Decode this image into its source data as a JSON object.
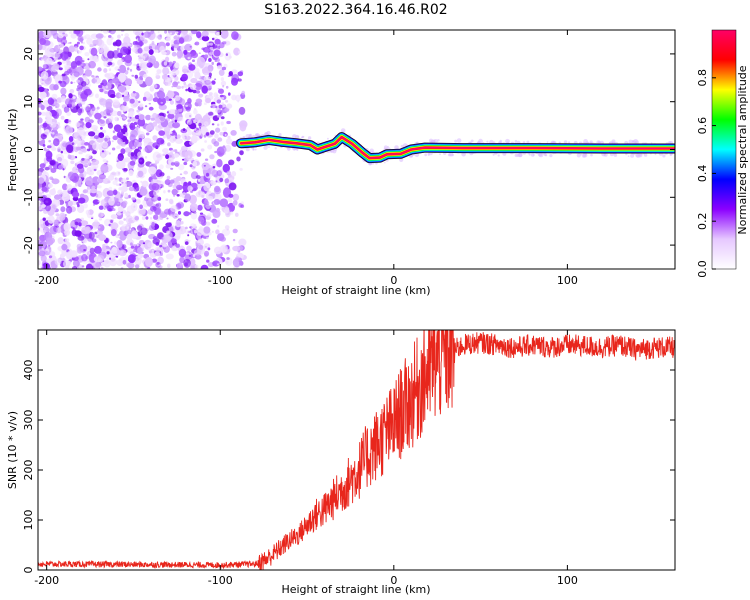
{
  "title": "S163.2022.364.16.46.R02",
  "chart_data": [
    {
      "type": "heatmap",
      "xlabel": "Height of straight line (km)",
      "ylabel": "Frequency (Hz)",
      "xlim": [
        -205,
        162
      ],
      "ylim": [
        -25,
        25
      ],
      "x_ticks": [
        -200,
        -100,
        0,
        100
      ],
      "y_ticks": [
        -20,
        -10,
        0,
        10,
        20
      ],
      "colorbar": {
        "label": "Normalized spectral amplitude",
        "range": [
          0,
          1
        ],
        "ticks": [
          0.0,
          0.2,
          0.4,
          0.6,
          0.8
        ],
        "tick_labels": [
          "0.0",
          "0.2",
          "0.4",
          "0.6",
          "0.8"
        ],
        "colormap": [
          "#ffffff",
          "#e6c8ff",
          "#8b00ff",
          "#0000ff",
          "#00ffff",
          "#00ff00",
          "#ffff00",
          "#ff0000",
          "#ff0066"
        ]
      },
      "noise_region_x": [
        -205,
        -86
      ],
      "signal_start_x": -88,
      "peak_track": {
        "x": [
          -88,
          -80,
          -72,
          -64,
          -56,
          -48,
          -44,
          -40,
          -34,
          -30,
          -24,
          -18,
          -14,
          -8,
          -4,
          4,
          10,
          18,
          40,
          80,
          120,
          162
        ],
        "y": [
          1.3,
          1.5,
          2.0,
          1.6,
          1.3,
          0.9,
          0.0,
          0.5,
          1.2,
          2.6,
          1.2,
          -0.7,
          -1.8,
          -1.7,
          -1.0,
          -0.9,
          0.0,
          0.4,
          0.3,
          0.3,
          0.2,
          0.2
        ]
      }
    },
    {
      "type": "line",
      "xlabel": "Height of straight line (km)",
      "ylabel": "SNR (10 * v/v)",
      "xlim": [
        -205,
        162
      ],
      "ylim": [
        0,
        480
      ],
      "x_ticks": [
        -200,
        -100,
        0,
        100
      ],
      "y_ticks": [
        0,
        100,
        200,
        300,
        400
      ],
      "color": "#e8261c",
      "series": [
        {
          "x": [
            -205,
            -100,
            -80,
            -75,
            -70,
            -65,
            -60,
            -55,
            -50,
            -45,
            -40,
            -35,
            -30,
            -25,
            -20,
            -15,
            -10,
            -5,
            0,
            5,
            10,
            15,
            20,
            25,
            30,
            35,
            40,
            50,
            60,
            70,
            80,
            90,
            100,
            110,
            120,
            130,
            140,
            150,
            162
          ],
          "values": [
            12,
            10,
            12,
            18,
            30,
            45,
            60,
            70,
            90,
            110,
            120,
            140,
            160,
            180,
            200,
            230,
            250,
            270,
            290,
            320,
            340,
            370,
            400,
            420,
            430,
            440,
            450,
            455,
            450,
            445,
            450,
            445,
            450,
            448,
            445,
            450,
            440,
            445,
            445
          ]
        }
      ]
    }
  ]
}
